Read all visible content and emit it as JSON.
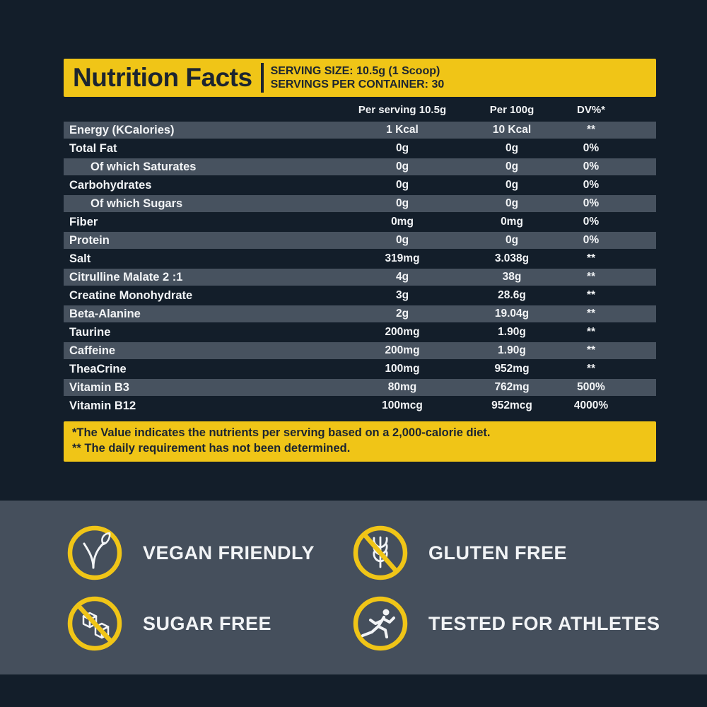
{
  "header": {
    "title": "Nutrition Facts",
    "serving_size": "SERVING SIZE: 10.5g (1 Scoop)",
    "servings_per_container": "SERVINGS PER CONTAINER: 30"
  },
  "table": {
    "columns": [
      "Per serving 10.5g",
      "Per 100g",
      "DV%*"
    ],
    "rows": [
      {
        "label": "Energy (KCalories)",
        "per_serving": "1 Kcal",
        "per_100g": "10 Kcal",
        "dv": "**",
        "indent": false,
        "bold": false
      },
      {
        "label": "Total Fat",
        "per_serving": "0g",
        "per_100g": "0g",
        "dv": "0%",
        "indent": false,
        "bold": true
      },
      {
        "label": "Of which Saturates",
        "per_serving": "0g",
        "per_100g": "0g",
        "dv": "0%",
        "indent": true,
        "bold": false
      },
      {
        "label": "Carbohydrates",
        "per_serving": "0g",
        "per_100g": "0g",
        "dv": "0%",
        "indent": false,
        "bold": true
      },
      {
        "label": "Of which Sugars",
        "per_serving": "0g",
        "per_100g": "0g",
        "dv": "0%",
        "indent": true,
        "bold": false
      },
      {
        "label": "Fiber",
        "per_serving": "0mg",
        "per_100g": "0mg",
        "dv": "0%",
        "indent": false,
        "bold": true
      },
      {
        "label": "Protein",
        "per_serving": "0g",
        "per_100g": "0g",
        "dv": "0%",
        "indent": false,
        "bold": true
      },
      {
        "label": "Salt",
        "per_serving": "319mg",
        "per_100g": "3.038g",
        "dv": "**",
        "indent": false,
        "bold": false
      },
      {
        "label": "Citrulline Malate 2 :1",
        "per_serving": "4g",
        "per_100g": "38g",
        "dv": "**",
        "indent": false,
        "bold": false
      },
      {
        "label": "Creatine Monohydrate",
        "per_serving": "3g",
        "per_100g": "28.6g",
        "dv": "**",
        "indent": false,
        "bold": false
      },
      {
        "label": "Beta-Alanine",
        "per_serving": "2g",
        "per_100g": "19.04g",
        "dv": "**",
        "indent": false,
        "bold": false
      },
      {
        "label": "Taurine",
        "per_serving": "200mg",
        "per_100g": "1.90g",
        "dv": "**",
        "indent": false,
        "bold": false
      },
      {
        "label": "Caffeine",
        "per_serving": "200mg",
        "per_100g": "1.90g",
        "dv": "**",
        "indent": false,
        "bold": false
      },
      {
        "label": "TheaCrine",
        "per_serving": "100mg",
        "per_100g": "952mg",
        "dv": "**",
        "indent": false,
        "bold": false
      },
      {
        "label": "Vitamin B3",
        "per_serving": "80mg",
        "per_100g": "762mg",
        "dv": "500%",
        "indent": false,
        "bold": false
      },
      {
        "label": "Vitamin B12",
        "per_serving": "100mcg",
        "per_100g": "952mcg",
        "dv": "4000%",
        "indent": false,
        "bold": false
      }
    ]
  },
  "footnotes": {
    "line1": "*The Value indicates the nutrients per serving based on a 2,000-calorie diet.",
    "line2": "** The daily requirement has not been determined."
  },
  "badges": [
    {
      "icon": "vegan-icon",
      "label": "VEGAN FRIENDLY"
    },
    {
      "icon": "gluten-free-icon",
      "label": "GLUTEN FREE"
    },
    {
      "icon": "sugar-free-icon",
      "label": "SUGAR FREE"
    },
    {
      "icon": "athlete-icon",
      "label": "TESTED FOR ATHLETES"
    }
  ],
  "colors": {
    "bg": "#131e2a",
    "accent_yellow": "#f0c517",
    "row_light": "#47525f",
    "panel": "#454f5c",
    "text_light": "#f2f4f6",
    "text_dark": "#1c2530"
  }
}
